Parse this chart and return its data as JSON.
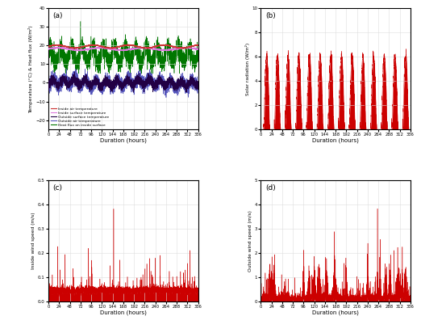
{
  "panel_labels": [
    "(a)",
    "(b)",
    "(c)",
    "(d)"
  ],
  "x_ticks": [
    0,
    24,
    48,
    72,
    96,
    120,
    144,
    168,
    192,
    216,
    240,
    264,
    288,
    312,
    336
  ],
  "x_label": "Duration (hours)",
  "panel_a": {
    "ylabel": "Temperature (°C) & Heat flux (W/m²)",
    "ylim": [
      -25,
      40
    ],
    "yticks": [
      -20,
      -10,
      0,
      10,
      20,
      30,
      40
    ],
    "legend": [
      "Inside air temperature",
      "Inside surface temperature",
      "Outside surface temperature",
      "Outside air temperature",
      "Heat flux on inside surface"
    ],
    "colors": [
      "#cc3333",
      "#dd77dd",
      "#220044",
      "#5555bb",
      "#007700"
    ]
  },
  "panel_b": {
    "ylabel": "Solar radiation (W/m²)",
    "ylim": [
      0,
      10
    ],
    "yticks": [
      0,
      2,
      4,
      6,
      8,
      10
    ],
    "color": "#cc0000"
  },
  "panel_c": {
    "ylabel": "Inside wind speed (m/s)",
    "ylim": [
      0.0,
      0.5
    ],
    "yticks": [
      0.0,
      0.1,
      0.2,
      0.3,
      0.4,
      0.5
    ],
    "color": "#cc0000"
  },
  "panel_d": {
    "ylabel": "Outside wind speed (m/s)",
    "ylim": [
      0.0,
      5.0
    ],
    "yticks": [
      0.0,
      1.0,
      2.0,
      3.0,
      4.0,
      5.0
    ],
    "color": "#cc0000"
  },
  "bg_color": "#ffffff",
  "grid_color": "#dddddd"
}
